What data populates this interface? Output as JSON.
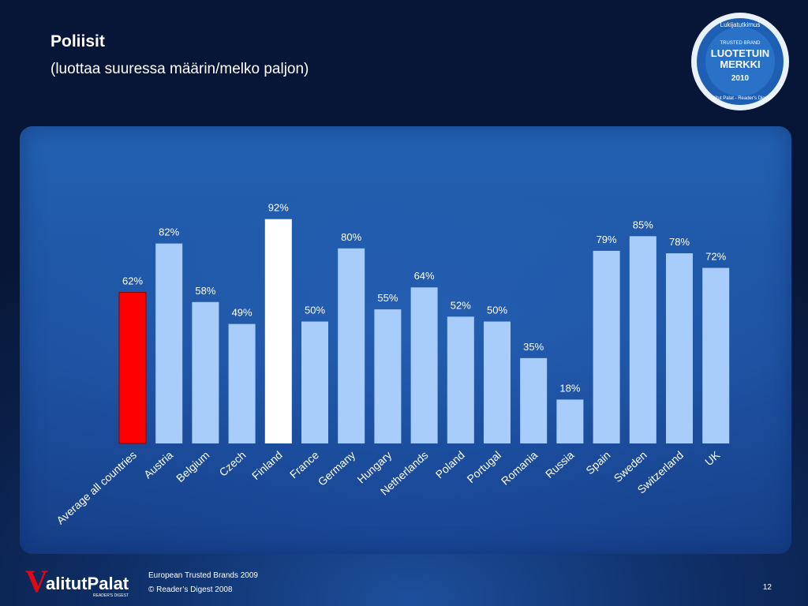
{
  "slide": {
    "title": "Poliisit",
    "subtitle": "(luottaa suuressa määrin/melko paljon)",
    "footer_line1": "European Trusted Brands 2009",
    "footer_line2": "© Reader’s Digest 2008",
    "page_number": "12"
  },
  "logo": {
    "name": "ValitutPalat",
    "first_letter": "V",
    "rest": "alitutPalat",
    "sub": "READER'S DIGEST"
  },
  "badge": {
    "top_text": "Lukijatutkimus",
    "small_text": "TRUSTED BRAND",
    "main_line1": "LUOTETUIN",
    "main_line2": "MERKKI",
    "year": "2010",
    "bottom_text": "Valitut Palat - Reader's Digest"
  },
  "colors": {
    "highlight_average": "#ff0000",
    "highlight_finland": "#ffffff",
    "bar_default": "#a8cdfb",
    "label_text": "#ffffff",
    "value_text": "#ffffff"
  },
  "chart_data": {
    "type": "bar",
    "title": "Poliisit",
    "subtitle": "(luottaa suuressa määrin/melko paljon)",
    "categories": [
      "Average all countries",
      "Austria",
      "Belgium",
      "Czech",
      "Finland",
      "France",
      "Germany",
      "Hungary",
      "Netherlands",
      "Poland",
      "Portugal",
      "Romania",
      "Russia",
      "Spain",
      "Sweden",
      "Switzerland",
      "UK"
    ],
    "values": [
      62,
      82,
      58,
      49,
      92,
      50,
      80,
      55,
      64,
      52,
      50,
      35,
      18,
      79,
      85,
      78,
      72
    ],
    "value_labels": [
      "62%",
      "82%",
      "58%",
      "49%",
      "92%",
      "50%",
      "80%",
      "55%",
      "64%",
      "52%",
      "50%",
      "35%",
      "18%",
      "79%",
      "85%",
      "78%",
      "72%"
    ],
    "highlight": {
      "Average all countries": "#ff0000",
      "Finland": "#ffffff"
    },
    "ylim": [
      0,
      100
    ],
    "grid": false,
    "legend": "none"
  }
}
